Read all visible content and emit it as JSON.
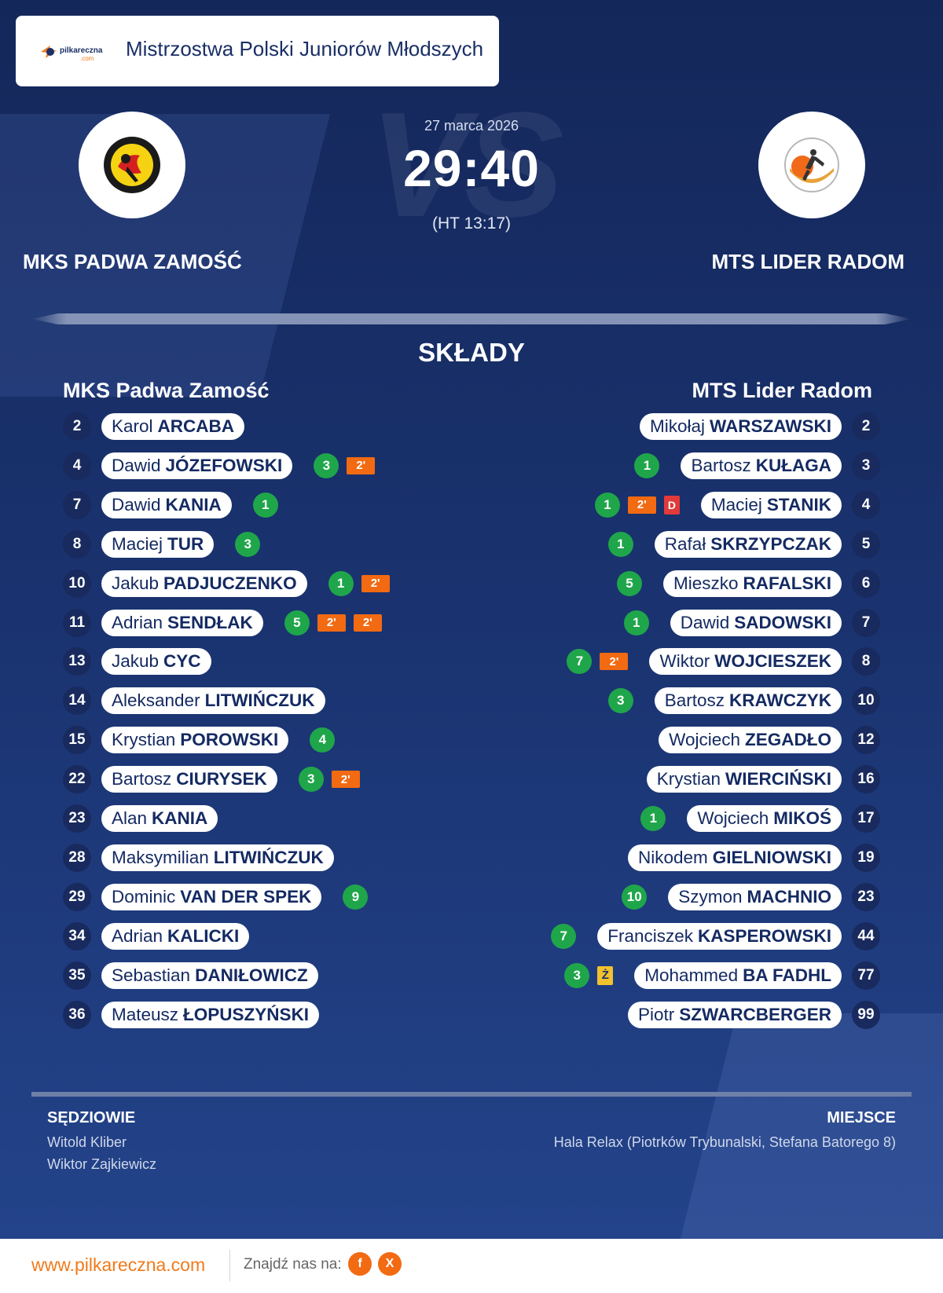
{
  "header": {
    "title": "Mistrzostwa Polski Juniorów Młodszych",
    "logo_text": "pilkareczna.com"
  },
  "match": {
    "date": "27 marca 2026",
    "score": "29:40",
    "halftime": "(HT 13:17)",
    "vs_text": "VS",
    "home": {
      "name_upper": "MKS PADWA ZAMOŚĆ",
      "name": "MKS Padwa Zamość"
    },
    "away": {
      "name_upper": "MTS LIDER RADOM",
      "name": "MTS Lider Radom"
    }
  },
  "section_title": "SKŁADY",
  "home_players": [
    {
      "no": "2",
      "first": "Karol",
      "last": "ARCABA",
      "badges": []
    },
    {
      "no": "4",
      "first": "Dawid",
      "last": "JÓZEFOWSKI",
      "badges": [
        {
          "t": "goal",
          "v": "3"
        },
        {
          "t": "pen",
          "v": "2'"
        }
      ]
    },
    {
      "no": "7",
      "first": "Dawid",
      "last": "KANIA",
      "badges": [
        {
          "t": "goal",
          "v": "1"
        }
      ]
    },
    {
      "no": "8",
      "first": "Maciej",
      "last": "TUR",
      "badges": [
        {
          "t": "goal",
          "v": "3"
        }
      ]
    },
    {
      "no": "10",
      "first": "Jakub",
      "last": "PADJUCZENKO",
      "badges": [
        {
          "t": "goal",
          "v": "1"
        },
        {
          "t": "pen",
          "v": "2'"
        }
      ]
    },
    {
      "no": "11",
      "first": "Adrian",
      "last": "SENDŁAK",
      "badges": [
        {
          "t": "goal",
          "v": "5"
        },
        {
          "t": "pen",
          "v": "2'"
        },
        {
          "t": "pen",
          "v": "2'"
        }
      ]
    },
    {
      "no": "13",
      "first": "Jakub",
      "last": "CYC",
      "badges": []
    },
    {
      "no": "14",
      "first": "Aleksander",
      "last": "LITWIŃCZUK",
      "badges": []
    },
    {
      "no": "15",
      "first": "Krystian",
      "last": "POROWSKI",
      "badges": [
        {
          "t": "goal",
          "v": "4"
        }
      ]
    },
    {
      "no": "22",
      "first": "Bartosz",
      "last": "CIURYSEK",
      "badges": [
        {
          "t": "goal",
          "v": "3"
        },
        {
          "t": "pen",
          "v": "2'"
        }
      ]
    },
    {
      "no": "23",
      "first": "Alan",
      "last": "KANIA",
      "badges": []
    },
    {
      "no": "28",
      "first": "Maksymilian",
      "last": "LITWIŃCZUK",
      "badges": []
    },
    {
      "no": "29",
      "first": "Dominic",
      "last": "VAN DER SPEK",
      "badges": [
        {
          "t": "goal",
          "v": "9"
        }
      ]
    },
    {
      "no": "34",
      "first": "Adrian",
      "last": "KALICKI",
      "badges": []
    },
    {
      "no": "35",
      "first": "Sebastian",
      "last": "DANIŁOWICZ",
      "badges": []
    },
    {
      "no": "36",
      "first": "Mateusz",
      "last": "ŁOPUSZYŃSKI",
      "badges": []
    }
  ],
  "away_players": [
    {
      "no": "2",
      "first": "Mikołaj",
      "last": "WARSZAWSKI",
      "badges": []
    },
    {
      "no": "3",
      "first": "Bartosz",
      "last": "KUŁAGA",
      "badges": [
        {
          "t": "goal",
          "v": "1"
        }
      ]
    },
    {
      "no": "4",
      "first": "Maciej",
      "last": "STANIK",
      "badges": [
        {
          "t": "red",
          "v": "D"
        },
        {
          "t": "pen",
          "v": "2'"
        },
        {
          "t": "goal",
          "v": "1"
        }
      ]
    },
    {
      "no": "5",
      "first": "Rafał",
      "last": "SKRZYPCZAK",
      "badges": [
        {
          "t": "goal",
          "v": "1"
        }
      ]
    },
    {
      "no": "6",
      "first": "Mieszko",
      "last": "RAFALSKI",
      "badges": [
        {
          "t": "goal",
          "v": "5"
        }
      ]
    },
    {
      "no": "7",
      "first": "Dawid",
      "last": "SADOWSKI",
      "badges": [
        {
          "t": "goal",
          "v": "1"
        }
      ]
    },
    {
      "no": "8",
      "first": "Wiktor",
      "last": "WOJCIESZEK",
      "badges": [
        {
          "t": "pen",
          "v": "2'"
        },
        {
          "t": "goal",
          "v": "7"
        }
      ]
    },
    {
      "no": "10",
      "first": "Bartosz",
      "last": "KRAWCZYK",
      "badges": [
        {
          "t": "goal",
          "v": "3"
        }
      ]
    },
    {
      "no": "12",
      "first": "Wojciech",
      "last": "ZEGADŁO",
      "badges": []
    },
    {
      "no": "16",
      "first": "Krystian",
      "last": "WIERCIŃSKI",
      "badges": []
    },
    {
      "no": "17",
      "first": "Wojciech",
      "last": "MIKOŚ",
      "badges": [
        {
          "t": "goal",
          "v": "1"
        }
      ]
    },
    {
      "no": "19",
      "first": "Nikodem",
      "last": "GIELNIOWSKI",
      "badges": []
    },
    {
      "no": "23",
      "first": "Szymon",
      "last": "MACHNIO",
      "badges": [
        {
          "t": "goal",
          "v": "10"
        }
      ]
    },
    {
      "no": "44",
      "first": "Franciszek",
      "last": "KASPEROWSKI",
      "badges": [
        {
          "t": "goal",
          "v": "7"
        }
      ]
    },
    {
      "no": "77",
      "first": "Mohammed",
      "last": "BA FADHL",
      "badges": [
        {
          "t": "yellow",
          "v": "Ż"
        },
        {
          "t": "goal",
          "v": "3"
        }
      ]
    },
    {
      "no": "99",
      "first": "Piotr",
      "last": "SZWARCBERGER",
      "badges": []
    }
  ],
  "referees": {
    "label": "SĘDZIOWIE",
    "names": [
      "Witold Kliber",
      "Wiktor Zajkiewicz"
    ]
  },
  "venue": {
    "label": "MIEJSCE",
    "text": "Hala Relax (Piotrków Trybunalski, Stefana Batorego 8)"
  },
  "footer": {
    "site": "www.pilkareczna.com",
    "find_us": "Znajdź nas na:",
    "social": [
      "f",
      "X"
    ]
  },
  "colors": {
    "background": "#1a3370",
    "accent": "#f26a12",
    "goal": "#1fa64a",
    "red_card": "#e23a3a",
    "yellow_card": "#f2c12e"
  }
}
